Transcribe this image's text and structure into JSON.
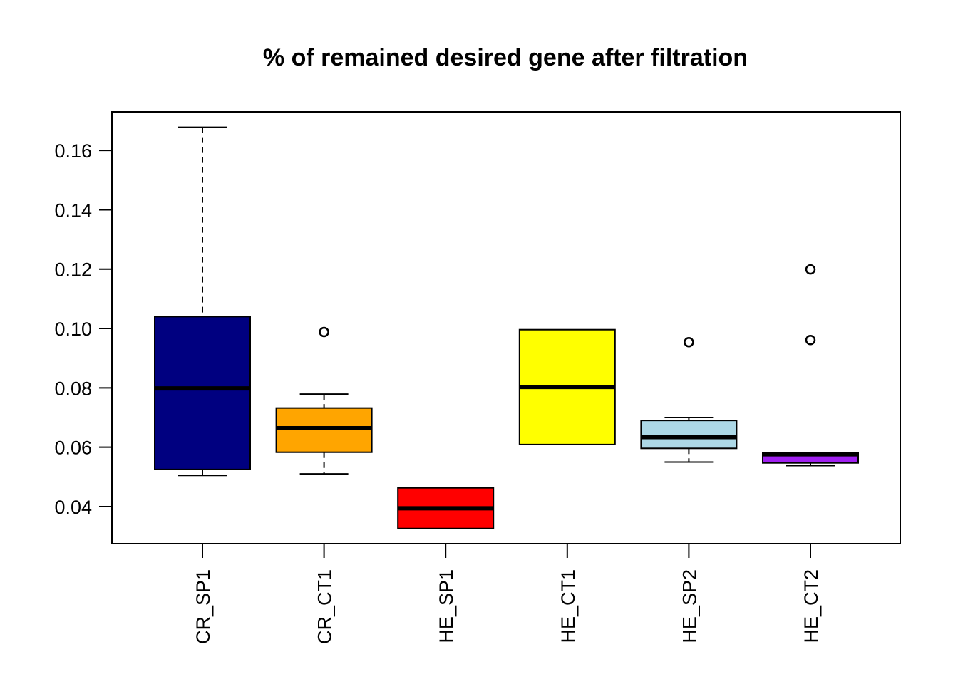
{
  "chart_data": {
    "type": "boxplot",
    "title": "% of remained desired gene after filtration",
    "xlabel": "",
    "ylabel": "",
    "ylim": [
      0.0275,
      0.173
    ],
    "y_ticks": [
      0.04,
      0.06,
      0.08,
      0.1,
      0.12,
      0.14,
      0.16
    ],
    "y_tick_labels": [
      "0.04",
      "0.06",
      "0.08",
      "0.10",
      "0.12",
      "0.14",
      "0.16"
    ],
    "categories": [
      "CR_SP1",
      "CR_CT1",
      "HE_SP1",
      "HE_CT1",
      "HE_SP2",
      "HE_CT2"
    ],
    "grid": false,
    "boxes": [
      {
        "name": "CR_SP1",
        "color": "#000080",
        "whisker_low": 0.0505,
        "q1": 0.0525,
        "median": 0.0798,
        "q3": 0.104,
        "whisker_high": 0.1678,
        "outliers": []
      },
      {
        "name": "CR_CT1",
        "color": "#FFA500",
        "whisker_low": 0.051,
        "q1": 0.0583,
        "median": 0.0664,
        "q3": 0.0732,
        "whisker_high": 0.0779,
        "outliers": [
          0.0988
        ]
      },
      {
        "name": "HE_SP1",
        "color": "#FF0000",
        "whisker_low": 0.0326,
        "q1": 0.0326,
        "median": 0.0394,
        "q3": 0.0463,
        "whisker_high": 0.0463,
        "outliers": []
      },
      {
        "name": "HE_CT1",
        "color": "#FFFF00",
        "whisker_low": 0.0609,
        "q1": 0.0609,
        "median": 0.0803,
        "q3": 0.0996,
        "whisker_high": 0.0996,
        "outliers": []
      },
      {
        "name": "HE_SP2",
        "color": "#ADD8E6",
        "whisker_low": 0.055,
        "q1": 0.0596,
        "median": 0.0634,
        "q3": 0.069,
        "whisker_high": 0.07,
        "outliers": [
          0.0954
        ]
      },
      {
        "name": "HE_CT2",
        "color": "#A020F0",
        "whisker_low": 0.0538,
        "q1": 0.0547,
        "median": 0.0576,
        "q3": 0.0582,
        "whisker_high": 0.0582,
        "outliers": [
          0.0961,
          0.1199
        ]
      }
    ]
  }
}
